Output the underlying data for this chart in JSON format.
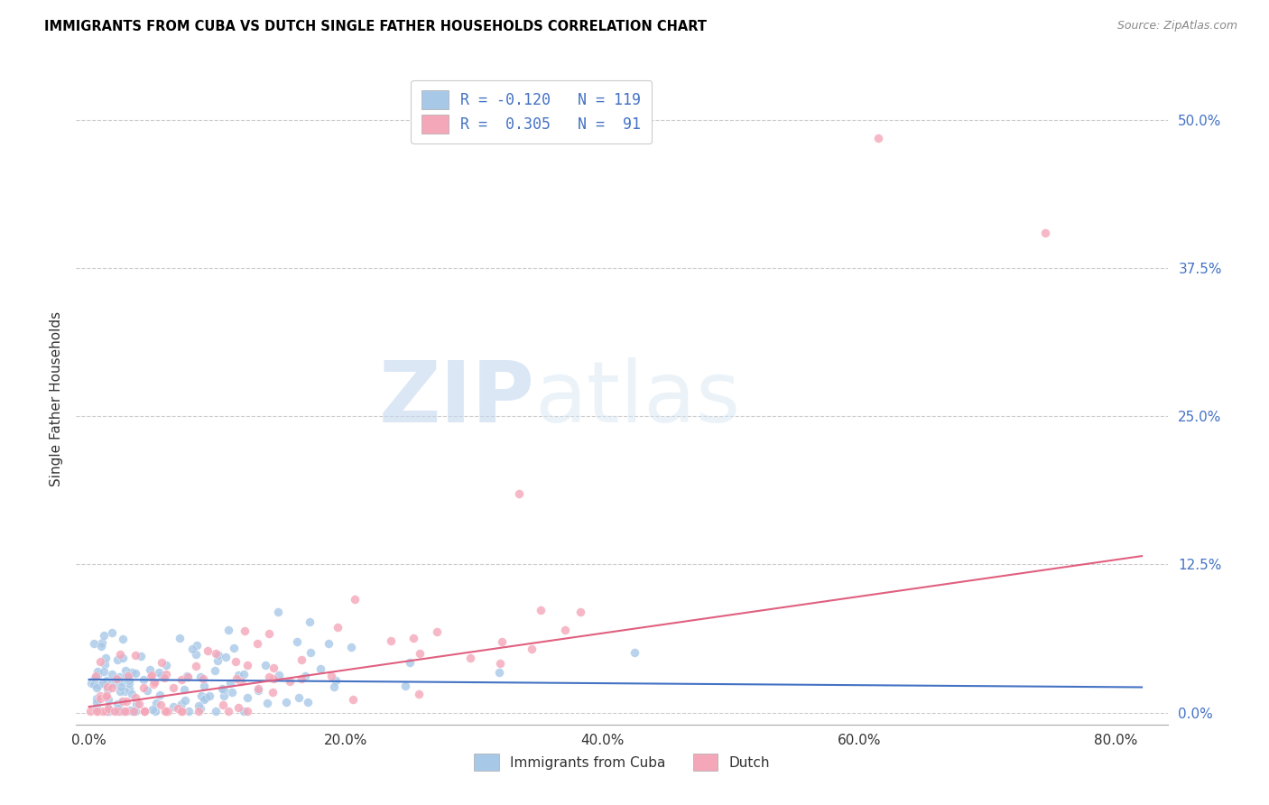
{
  "title": "IMMIGRANTS FROM CUBA VS DUTCH SINGLE FATHER HOUSEHOLDS CORRELATION CHART",
  "source": "Source: ZipAtlas.com",
  "ylabel": "Single Father Households",
  "xlabel_ticks": [
    "0.0%",
    "20.0%",
    "40.0%",
    "60.0%",
    "80.0%"
  ],
  "xlabel_vals": [
    0.0,
    0.2,
    0.4,
    0.6,
    0.8
  ],
  "ytick_labels": [
    "0.0%",
    "12.5%",
    "25.0%",
    "37.5%",
    "50.0%"
  ],
  "ytick_vals": [
    0.0,
    0.125,
    0.25,
    0.375,
    0.5
  ],
  "xlim": [
    -0.01,
    0.84
  ],
  "ylim": [
    -0.01,
    0.54
  ],
  "cuba_color": "#a8c8e8",
  "dutch_color": "#f4a7b9",
  "cuba_line_color": "#4472c4",
  "dutch_line_color": "#e06080",
  "cuba_R": -0.12,
  "cuba_N": 119,
  "dutch_R": 0.305,
  "dutch_N": 91,
  "legend_label_cuba": "Immigrants from Cuba",
  "legend_label_dutch": "Dutch",
  "watermark_zip": "ZIP",
  "watermark_atlas": "atlas",
  "axis_label_color": "#4472c4",
  "grid_color": "#cccccc",
  "background_color": "#ffffff",
  "cuba_line_slope": -0.008,
  "cuba_line_intercept": 0.028,
  "dutch_line_slope": 0.155,
  "dutch_line_intercept": 0.005
}
